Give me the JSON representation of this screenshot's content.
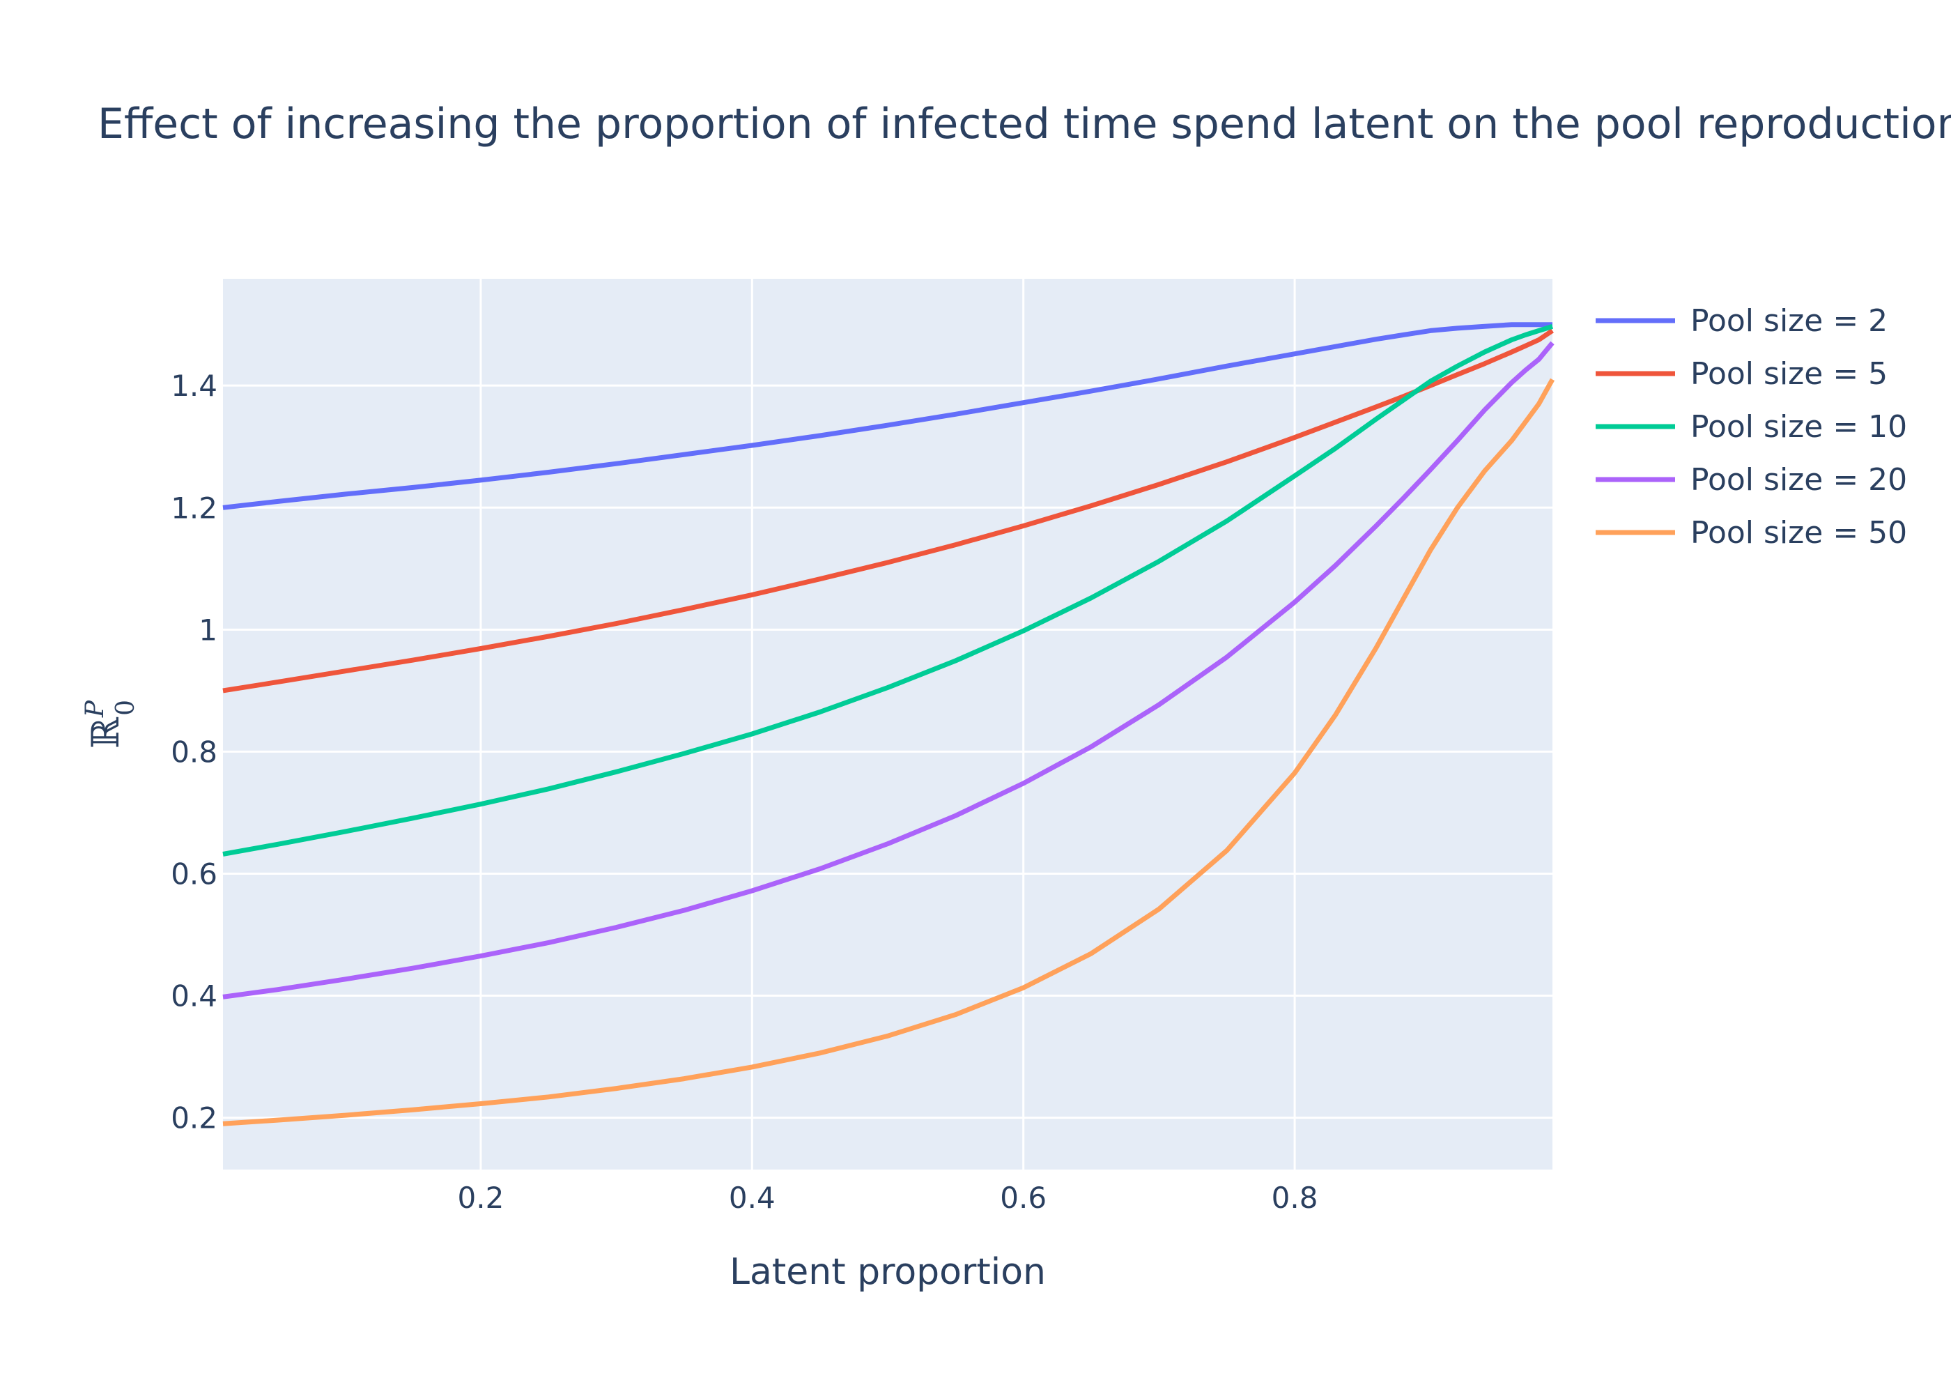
{
  "chart_data": {
    "type": "line",
    "title": "Effect of increasing the proportion of infected time spend latent on the pool reproduction number",
    "xlabel": "Latent proportion",
    "ylabel": {
      "base": "ℝ",
      "sup": "P",
      "sub": "0"
    },
    "xlim": [
      0.01,
      0.99
    ],
    "ylim": [
      0.115,
      1.575
    ],
    "xticks": [
      0.2,
      0.4,
      0.6,
      0.8
    ],
    "xtick_labels": [
      "0.2",
      "0.4",
      "0.6",
      "0.8"
    ],
    "yticks": [
      0.2,
      0.4,
      0.6,
      0.8,
      1.0,
      1.2,
      1.4
    ],
    "ytick_labels": [
      "0.2",
      "0.4",
      "0.6",
      "0.8",
      "1",
      "1.2",
      "1.4"
    ],
    "grid": true,
    "legend_position": "right",
    "x": [
      0.01,
      0.05,
      0.1,
      0.15,
      0.2,
      0.25,
      0.3,
      0.35,
      0.4,
      0.45,
      0.5,
      0.55,
      0.6,
      0.65,
      0.7,
      0.75,
      0.8,
      0.83,
      0.86,
      0.88,
      0.9,
      0.92,
      0.94,
      0.96,
      0.97,
      0.98,
      0.99
    ],
    "series": [
      {
        "name": "Pool size = 2",
        "color": "#636efa",
        "values": [
          1.2,
          1.21,
          1.222,
          1.233,
          1.245,
          1.258,
          1.272,
          1.287,
          1.302,
          1.318,
          1.335,
          1.353,
          1.372,
          1.391,
          1.411,
          1.432,
          1.452,
          1.464,
          1.476,
          1.483,
          1.49,
          1.494,
          1.497,
          1.5,
          1.5,
          1.5,
          1.5
        ]
      },
      {
        "name": "Pool size = 5",
        "color": "#ef553b",
        "values": [
          0.9,
          0.914,
          0.932,
          0.95,
          0.969,
          0.989,
          1.01,
          1.033,
          1.057,
          1.083,
          1.11,
          1.139,
          1.17,
          1.203,
          1.238,
          1.275,
          1.315,
          1.34,
          1.365,
          1.382,
          1.4,
          1.418,
          1.436,
          1.455,
          1.465,
          1.475,
          1.49
        ]
      },
      {
        "name": "Pool size = 10",
        "color": "#00cc96",
        "values": [
          0.632,
          0.648,
          0.669,
          0.691,
          0.714,
          0.739,
          0.767,
          0.797,
          0.829,
          0.865,
          0.905,
          0.949,
          0.998,
          1.052,
          1.112,
          1.178,
          1.252,
          1.297,
          1.345,
          1.376,
          1.407,
          1.432,
          1.455,
          1.475,
          1.483,
          1.49,
          1.497
        ]
      },
      {
        "name": "Pool size = 20",
        "color": "#ab63fa",
        "values": [
          0.398,
          0.41,
          0.427,
          0.445,
          0.465,
          0.487,
          0.512,
          0.54,
          0.572,
          0.608,
          0.649,
          0.695,
          0.748,
          0.808,
          0.877,
          0.955,
          1.045,
          1.105,
          1.17,
          1.215,
          1.262,
          1.31,
          1.36,
          1.405,
          1.425,
          1.443,
          1.47
        ]
      },
      {
        "name": "Pool size = 50",
        "color": "#ffa15a",
        "values": [
          0.19,
          0.196,
          0.204,
          0.213,
          0.223,
          0.234,
          0.248,
          0.264,
          0.283,
          0.306,
          0.334,
          0.369,
          0.413,
          0.469,
          0.542,
          0.638,
          0.765,
          0.86,
          0.97,
          1.05,
          1.13,
          1.2,
          1.26,
          1.31,
          1.34,
          1.37,
          1.41
        ]
      }
    ]
  }
}
